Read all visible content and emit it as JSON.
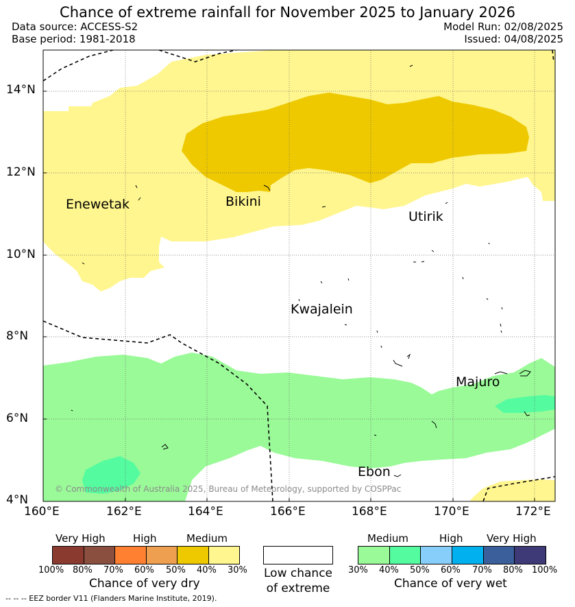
{
  "header": {
    "title": "Chance of extreme rainfall for November 2025 to January 2026",
    "data_source": "Data source: ACCESS-S2",
    "base_period": "Base period: 1981-2018",
    "model_run": "Model Run: 02/08/2025",
    "issued": "Issued: 04/08/2025"
  },
  "map": {
    "lat_ticks": [
      "14°N",
      "12°N",
      "10°N",
      "8°N",
      "6°N",
      "4°N"
    ],
    "lon_ticks": [
      "160°E",
      "162°E",
      "164°E",
      "166°E",
      "168°E",
      "170°E",
      "172°E"
    ],
    "places": [
      "Enewetak",
      "Bikini",
      "Utirik",
      "Kwajalein",
      "Majuro",
      "Ebon"
    ],
    "copyright": "© Commonwealth of Australia 2025, Bureau of Meteorology, supported by COSPPac"
  },
  "dry_legend": {
    "levels": [
      "Very High",
      "High",
      "Medium"
    ],
    "percents": [
      "100%",
      "80%",
      "70%",
      "60%",
      "50%",
      "40%",
      "30%"
    ],
    "colors": [
      "#8b3a30",
      "#8b4f3f",
      "#ff8030",
      "#eea050",
      "#eec900",
      "#fff68f"
    ],
    "title": "Chance of very dry"
  },
  "neutral_legend": {
    "line1": "Low chance",
    "line2": "of extreme",
    "color": "#ffffff"
  },
  "wet_legend": {
    "levels": [
      "Medium",
      "High",
      "Very High"
    ],
    "percents": [
      "30%",
      "40%",
      "50%",
      "60%",
      "70%",
      "80%",
      "100%"
    ],
    "colors": [
      "#9afa98",
      "#54fb9f",
      "#87cefa",
      "#00b0ef",
      "#3a5f9a",
      "#3e3a78"
    ],
    "title": "Chance of very wet"
  },
  "eez_note": "--  --  -- EEZ border V11 (Flanders Marine Institute, 2019)."
}
